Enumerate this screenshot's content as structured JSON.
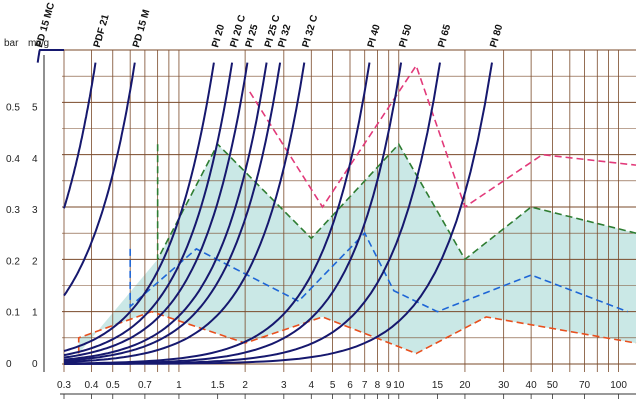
{
  "chart_data": {
    "type": "line",
    "title": "",
    "xlabel": "",
    "ylabel": "",
    "x_scale": "log",
    "xlim": [
      0.3,
      120
    ],
    "ylim": [
      0,
      0.6
    ],
    "grid": true,
    "y_units": {
      "bar": "bar",
      "mwg": "mwg"
    },
    "y_ticks": [
      {
        "bar": "0",
        "mwg": "0",
        "value": 0
      },
      {
        "bar": "0.1",
        "mwg": "1",
        "value": 0.098
      },
      {
        "bar": "0.2",
        "mwg": "2",
        "value": 0.196
      },
      {
        "bar": "0.3",
        "mwg": "3",
        "value": 0.294
      },
      {
        "bar": "0.4",
        "mwg": "4",
        "value": 0.392
      },
      {
        "bar": "0.5",
        "mwg": "5",
        "value": 0.49
      }
    ],
    "x_ticks": [
      {
        "label": "0.3",
        "value": 0.3
      },
      {
        "label": "0.4",
        "value": 0.4
      },
      {
        "label": "0.5",
        "value": 0.5
      },
      {
        "label": "0.7",
        "value": 0.7
      },
      {
        "label": "1",
        "value": 1
      },
      {
        "label": "1.5",
        "value": 1.5
      },
      {
        "label": "2",
        "value": 2
      },
      {
        "label": "3",
        "value": 3
      },
      {
        "label": "4",
        "value": 4
      },
      {
        "label": "5",
        "value": 5
      },
      {
        "label": "6",
        "value": 6
      },
      {
        "label": "7",
        "value": 7
      },
      {
        "label": "8",
        "value": 8
      },
      {
        "label": "9",
        "value": 9
      },
      {
        "label": "10",
        "value": 10
      },
      {
        "label": "15",
        "value": 15
      },
      {
        "label": "20",
        "value": 20
      },
      {
        "label": "30",
        "value": 30
      },
      {
        "label": "40",
        "value": 40
      },
      {
        "label": "50",
        "value": 50
      },
      {
        "label": "70",
        "value": 70
      },
      {
        "label": "100",
        "value": 100
      }
    ],
    "curves": [
      {
        "name": "PD 15 MC",
        "k": 0.3
      },
      {
        "name": "PDF 21",
        "k": 0.55
      },
      {
        "name": "PD 15 M",
        "k": 0.83
      },
      {
        "name": "PI 20",
        "k": 1.9
      },
      {
        "name": "PI 20 C",
        "k": 2.3
      },
      {
        "name": "PI 25",
        "k": 2.7
      },
      {
        "name": "PI 25 C",
        "k": 3.3
      },
      {
        "name": "PI 32",
        "k": 3.8
      },
      {
        "name": "PI 32 C",
        "k": 4.9
      },
      {
        "name": "PI 40",
        "k": 9.7
      },
      {
        "name": "PI 50",
        "k": 13.5
      },
      {
        "name": "PI 65",
        "k": 20.3
      },
      {
        "name": "PI 80",
        "k": 35
      }
    ],
    "dashed_series": [
      {
        "color": "#2e7d32",
        "points": [
          [
            0.8,
            0.42
          ],
          [
            0.8,
            0.2
          ],
          [
            1.5,
            0.42
          ],
          [
            4,
            0.24
          ],
          [
            10,
            0.42
          ],
          [
            20,
            0.2
          ],
          [
            40,
            0.3
          ],
          [
            120,
            0.25
          ]
        ]
      },
      {
        "color": "#1e66d6",
        "points": [
          [
            0.6,
            0.22
          ],
          [
            0.6,
            0.11
          ],
          [
            1.2,
            0.22
          ],
          [
            3.5,
            0.12
          ],
          [
            7,
            0.25
          ],
          [
            9.5,
            0.14
          ],
          [
            15,
            0.1
          ],
          [
            40,
            0.17
          ],
          [
            110,
            0.1
          ]
        ]
      },
      {
        "color": "#e8501e",
        "points": [
          [
            0.35,
            0.02
          ],
          [
            0.35,
            0.05
          ],
          [
            0.75,
            0.1
          ],
          [
            2,
            0.04
          ],
          [
            4.5,
            0.09
          ],
          [
            12,
            0.02
          ],
          [
            25,
            0.09
          ],
          [
            120,
            0.04
          ]
        ]
      },
      {
        "color": "#e23a7a",
        "points": [
          [
            2.1,
            0.52
          ],
          [
            4.5,
            0.3
          ],
          [
            12,
            0.57
          ],
          [
            20,
            0.3
          ],
          [
            45,
            0.4
          ],
          [
            120,
            0.38
          ]
        ]
      }
    ],
    "shaded_band": {
      "color": "#9fd6d2",
      "between": "#2e7d32 and #e8501e dashed series"
    }
  }
}
